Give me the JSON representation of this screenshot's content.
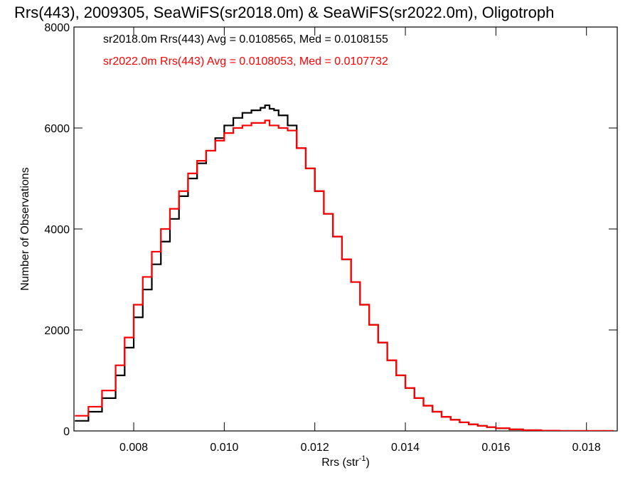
{
  "chart_data": {
    "type": "line",
    "title": "Rrs(443), 2009305, SeaWiFS(sr2018.0m) & SeaWiFS(sr2022.0m), Oligotroph",
    "xlabel_main": "Rrs (str",
    "xlabel_sup": "-1",
    "xlabel_close": ")",
    "ylabel": "Number of Observations",
    "xlim": [
      0.00668,
      0.01868
    ],
    "ylim": [
      0,
      8000
    ],
    "x_ticks": [
      0.008,
      0.01,
      0.012,
      0.014,
      0.016,
      0.018
    ],
    "x_tick_labels": [
      "0.008",
      "0.010",
      "0.012",
      "0.014",
      "0.016",
      "0.018"
    ],
    "y_ticks": [
      0,
      2000,
      4000,
      6000,
      8000
    ],
    "y_tick_labels": [
      "0",
      "2000",
      "4000",
      "6000",
      "8000"
    ],
    "legend_position": "top-left",
    "x": [
      0.0067,
      0.007,
      0.0073,
      0.0076,
      0.0078,
      0.008,
      0.0082,
      0.0084,
      0.0086,
      0.0088,
      0.009,
      0.0092,
      0.0094,
      0.0096,
      0.0098,
      0.01,
      0.0102,
      0.0104,
      0.0106,
      0.0108,
      0.0109,
      0.011,
      0.0111,
      0.0112,
      0.0114,
      0.0116,
      0.0118,
      0.012,
      0.0122,
      0.0124,
      0.0126,
      0.0128,
      0.013,
      0.0132,
      0.0134,
      0.0136,
      0.0138,
      0.014,
      0.0142,
      0.0144,
      0.0146,
      0.0148,
      0.015,
      0.0152,
      0.0154,
      0.0156,
      0.0158,
      0.016,
      0.0163,
      0.0166,
      0.017,
      0.0174,
      0.0178,
      0.0182,
      0.0186
    ],
    "series": [
      {
        "name": "sr2018.0m",
        "color": "#000000",
        "legend": "sr2018.0m Rrs(443) Avg = 0.0108565, Med = 0.0108155",
        "values": [
          200,
          380,
          650,
          1100,
          1650,
          2250,
          2800,
          3300,
          3750,
          4200,
          4650,
          5000,
          5300,
          5550,
          5800,
          6050,
          6200,
          6300,
          6350,
          6400,
          6450,
          6380,
          6350,
          6250,
          6050,
          5600,
          5200,
          4750,
          4300,
          3850,
          3400,
          2950,
          2500,
          2100,
          1750,
          1400,
          1100,
          850,
          650,
          500,
          380,
          280,
          220,
          170,
          130,
          100,
          75,
          55,
          30,
          15,
          5,
          0,
          0,
          0,
          0
        ]
      },
      {
        "name": "sr2022.0m",
        "color": "#ff0000",
        "legend": "sr2022.0m Rrs(443) Avg = 0.0108053, Med = 0.0107732",
        "values": [
          300,
          480,
          800,
          1300,
          1850,
          2500,
          3050,
          3550,
          4000,
          4400,
          4750,
          5100,
          5350,
          5550,
          5750,
          5900,
          6000,
          6050,
          6100,
          6100,
          6150,
          6050,
          6050,
          6000,
          5950,
          5600,
          5200,
          4750,
          4300,
          3850,
          3400,
          2950,
          2500,
          2100,
          1750,
          1400,
          1100,
          850,
          650,
          500,
          380,
          280,
          220,
          170,
          130,
          100,
          75,
          55,
          30,
          15,
          5,
          0,
          0,
          0,
          0
        ]
      }
    ]
  }
}
